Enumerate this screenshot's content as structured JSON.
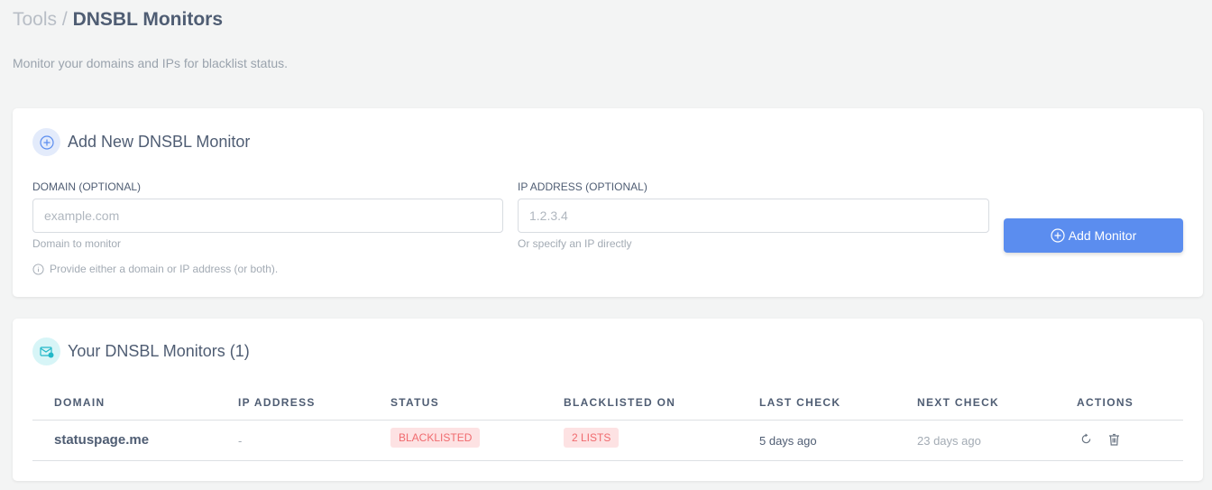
{
  "breadcrumb": {
    "parent": "Tools",
    "separator": "/",
    "current": "DNSBL Monitors"
  },
  "subtitle": "Monitor your domains and IPs for blacklist status.",
  "add_card": {
    "title": "Add New DNSBL Monitor",
    "domain": {
      "label": "DOMAIN (OPTIONAL)",
      "placeholder": "example.com",
      "value": "",
      "help": "Domain to monitor"
    },
    "ip": {
      "label": "IP ADDRESS (OPTIONAL)",
      "placeholder": "1.2.3.4",
      "value": "",
      "help": "Or specify an IP directly"
    },
    "note": "Provide either a domain or IP address (or both).",
    "button": "Add Monitor"
  },
  "list_card": {
    "title": "Your DNSBL Monitors (1)",
    "columns": [
      "DOMAIN",
      "IP ADDRESS",
      "STATUS",
      "BLACKLISTED ON",
      "LAST CHECK",
      "NEXT CHECK",
      "ACTIONS"
    ],
    "rows": [
      {
        "domain": "statuspage.me",
        "ip": "-",
        "status": "BLACKLISTED",
        "blacklisted_on": "2 LISTS",
        "last_check": "5 days ago",
        "next_check": "23 days ago"
      }
    ]
  },
  "colors": {
    "accent": "#5b8def",
    "danger": "#f06a6e",
    "danger_bg": "#fde2e3"
  }
}
